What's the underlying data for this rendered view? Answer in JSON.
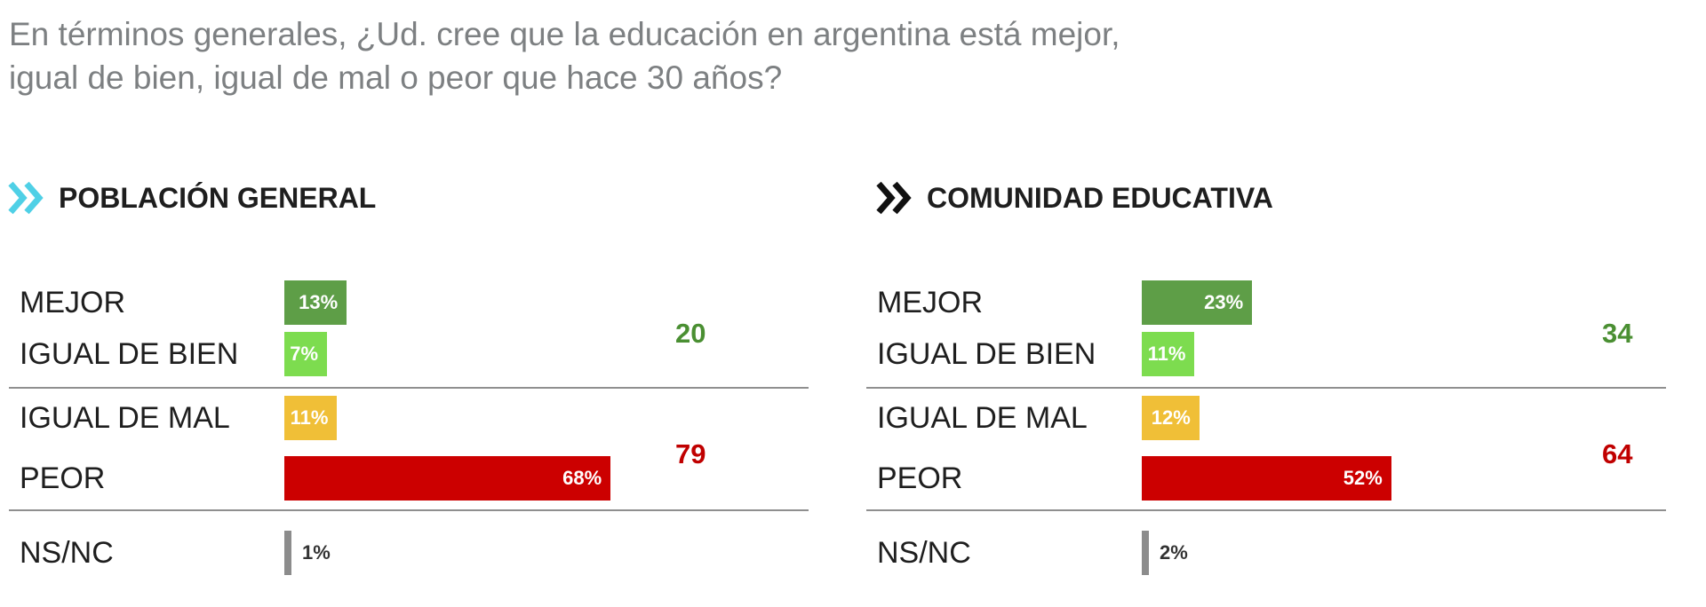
{
  "question": {
    "line1": "En términos generales, ¿Ud. cree que la educación en argentina está mejor,",
    "line2": "igual de bien, igual de mal o peor que hace 30 años?"
  },
  "colors": {
    "mejor": "#5e9e47",
    "igual_bien": "#7ddc4f",
    "igual_mal": "#f0bf37",
    "peor": "#cc0000",
    "nsnc": "#8c8c8c",
    "total_positive": "#4a8f32",
    "total_negative": "#c00000",
    "chevron_left": "#4fd0e6",
    "chevron_right": "#111111"
  },
  "chart_data": [
    {
      "type": "bar",
      "title": "POBLACIÓN GENERAL",
      "icon": "double-chevron-icon",
      "categories": [
        "MEJOR",
        "IGUAL DE BIEN",
        "IGUAL DE MAL",
        "PEOR",
        "NS/NC"
      ],
      "values": [
        13,
        7,
        11,
        68,
        1
      ],
      "value_labels": [
        "13%",
        "7%",
        "11%",
        "68%",
        "1%"
      ],
      "totals": [
        {
          "value": "20",
          "covers": [
            "MEJOR",
            "IGUAL DE BIEN"
          ]
        },
        {
          "value": "79",
          "covers": [
            "IGUAL DE MAL",
            "PEOR"
          ]
        }
      ],
      "xlim": [
        0,
        100
      ]
    },
    {
      "type": "bar",
      "title": "COMUNIDAD EDUCATIVA",
      "icon": "double-chevron-icon",
      "categories": [
        "MEJOR",
        "IGUAL DE BIEN",
        "IGUAL DE MAL",
        "PEOR",
        "NS/NC"
      ],
      "values": [
        23,
        11,
        12,
        52,
        2
      ],
      "value_labels": [
        "23%",
        "11%",
        "12%",
        "52%",
        "2%"
      ],
      "totals": [
        {
          "value": "34",
          "covers": [
            "MEJOR",
            "IGUAL DE BIEN"
          ]
        },
        {
          "value": "64",
          "covers": [
            "IGUAL DE MAL",
            "PEOR"
          ]
        }
      ],
      "xlim": [
        0,
        100
      ]
    }
  ]
}
